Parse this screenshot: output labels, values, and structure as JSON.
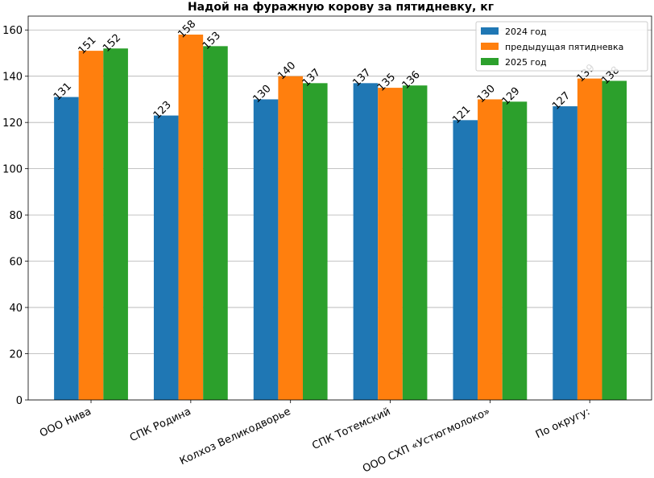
{
  "chart_data": {
    "type": "bar",
    "title": "Надой на фуражную корову за пятидневку, кг",
    "xlabel": "",
    "ylabel": "",
    "categories": [
      "ООО Нива",
      "СПК Родина",
      "Колхоз Великодворье",
      "СПК Тотемский",
      "ООО СХП «Устюгмолоко»",
      "По округу:"
    ],
    "series": [
      {
        "name": "2024 год",
        "color": "#1f77b4",
        "values": [
          131,
          123,
          130,
          137,
          121,
          127
        ],
        "labels": [
          "131",
          "123",
          "130",
          "137",
          "121",
          "127"
        ]
      },
      {
        "name": "предыдущая пятидневка",
        "color": "#ff7f0e",
        "values": [
          151,
          158,
          140,
          135,
          130,
          139
        ],
        "labels": [
          "151",
          "158",
          "140",
          "135",
          "130",
          "139"
        ]
      },
      {
        "name": "2025 год",
        "color": "#2ca02c",
        "values": [
          152,
          153,
          137,
          136,
          129,
          138
        ],
        "labels": [
          "152",
          "153",
          "137",
          "136",
          "129",
          "138"
        ]
      }
    ],
    "ylim": [
      0,
      166
    ],
    "yticks": [
      0,
      20,
      40,
      60,
      80,
      100,
      120,
      140,
      160
    ],
    "grid": true,
    "legend_position": "top-right"
  }
}
